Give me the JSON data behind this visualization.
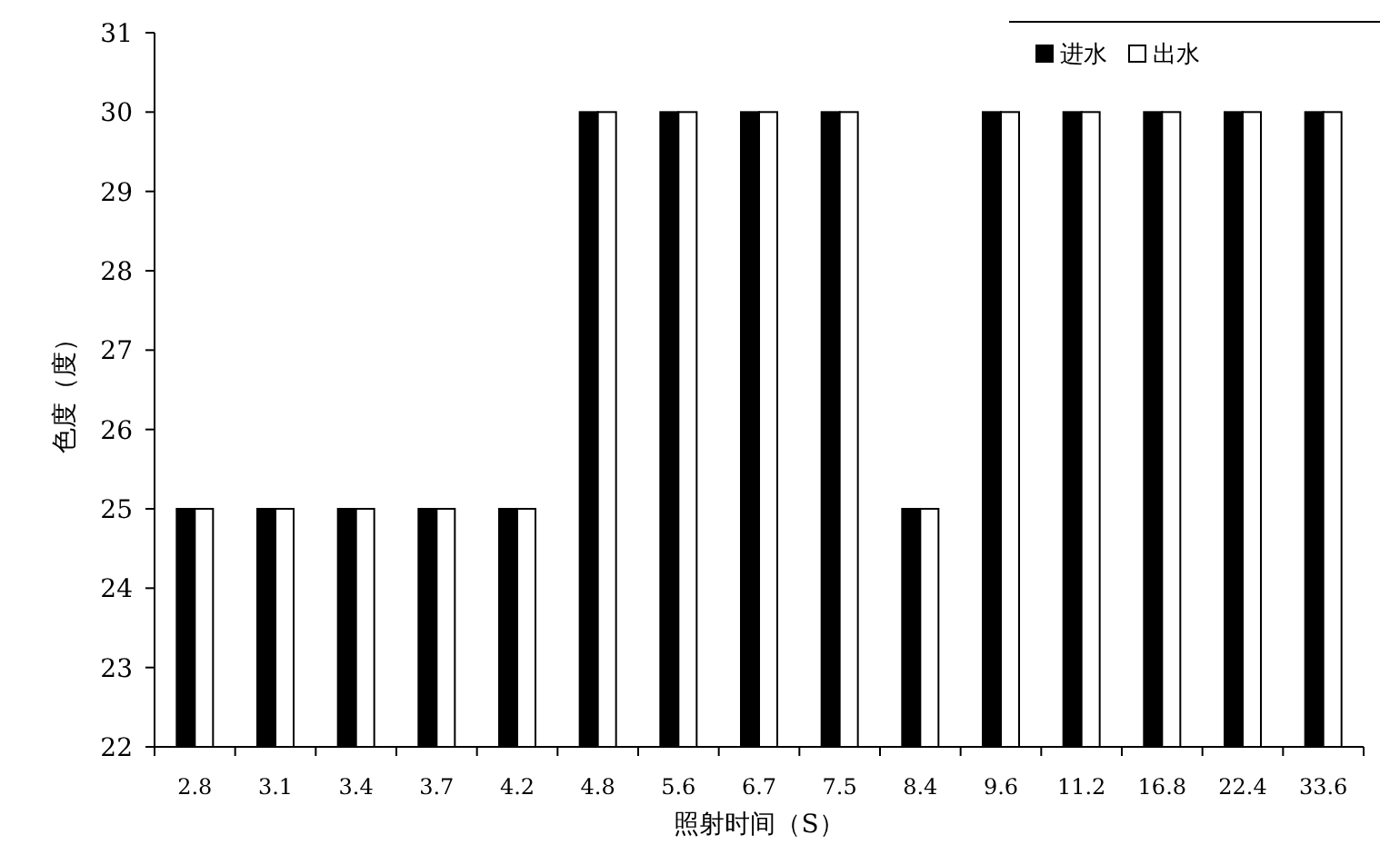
{
  "chart_data": {
    "type": "bar",
    "xlabel": "照射时间（S）",
    "ylabel": "色度（度）",
    "categories": [
      "2.8",
      "3.1",
      "3.4",
      "3.7",
      "4.2",
      "4.8",
      "5.6",
      "6.7",
      "7.5",
      "8.4",
      "9.6",
      "11.2",
      "16.8",
      "22.4",
      "33.6"
    ],
    "series": [
      {
        "name": "进水",
        "color": "#000000",
        "values": [
          25,
          25,
          25,
          25,
          25,
          30,
          30,
          30,
          30,
          25,
          30,
          30,
          30,
          30,
          30
        ]
      },
      {
        "name": "出水",
        "color": "#ffffff",
        "values": [
          25,
          25,
          25,
          25,
          25,
          30,
          30,
          30,
          30,
          25,
          30,
          30,
          30,
          30,
          30
        ]
      }
    ],
    "ylim": [
      22,
      31
    ],
    "yticks": [
      22,
      23,
      24,
      25,
      26,
      27,
      28,
      29,
      30,
      31
    ],
    "legend": "top right"
  }
}
